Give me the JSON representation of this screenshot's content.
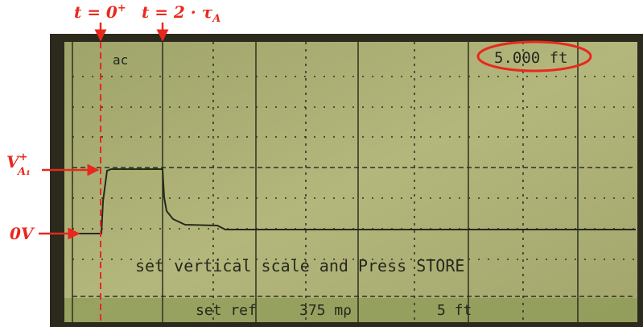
{
  "annotations": {
    "t_zero": {
      "main": "t = 0",
      "sup": "+"
    },
    "t_two_tau": {
      "main": "t = 2 · τ",
      "sub": "A"
    },
    "v_a1": {
      "main": "V",
      "sup": "+",
      "sub": "A₁"
    },
    "zero_v": "0V"
  },
  "screen": {
    "coupling": "ac",
    "distance": "5.000 ft",
    "message": "set vertical scale and Press STORE",
    "menu": [
      "set ref",
      "375 mρ",
      "5 ft"
    ]
  }
}
